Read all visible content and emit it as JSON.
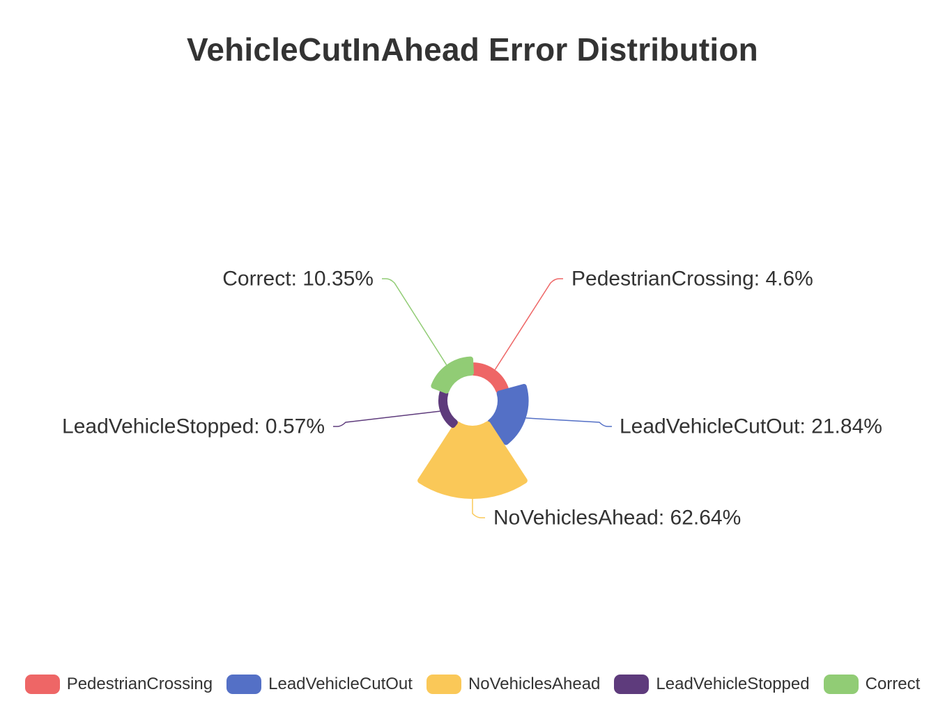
{
  "title": "VehicleCutInAhead Error Distribution",
  "chart_data": {
    "type": "pie",
    "subtype": "rose",
    "title": "VehicleCutInAhead Error Distribution",
    "legend_position": "bottom",
    "slices": [
      {
        "name": "PedestrianCrossing",
        "value": 4.6,
        "label": "PedestrianCrossing: 4.6%",
        "color": "#ee6666"
      },
      {
        "name": "LeadVehicleCutOut",
        "value": 21.84,
        "label": "LeadVehicleCutOut: 21.84%",
        "color": "#5470c6"
      },
      {
        "name": "NoVehiclesAhead",
        "value": 62.64,
        "label": "NoVehiclesAhead: 62.64%",
        "color": "#fac858"
      },
      {
        "name": "LeadVehicleStopped",
        "value": 0.57,
        "label": "LeadVehicleStopped: 0.57%",
        "color": "#5e3b7c"
      },
      {
        "name": "Correct",
        "value": 10.35,
        "label": "Correct: 10.35%",
        "color": "#91cc75"
      }
    ]
  }
}
